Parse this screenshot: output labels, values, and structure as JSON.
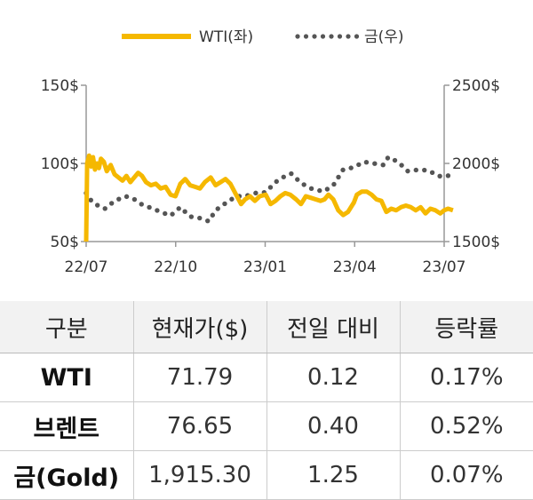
{
  "chart_data": {
    "type": "line",
    "legend_position": "top-center",
    "grid": false,
    "x_ticks": [
      "22/07",
      "22/10",
      "23/01",
      "23/04",
      "23/07"
    ],
    "x_range": [
      "2022-07",
      "2023-07"
    ],
    "y_left": {
      "ticks": [
        "150$",
        "100$",
        "50$"
      ],
      "ylim": [
        50,
        150
      ]
    },
    "y_right": {
      "ticks": [
        "2500$",
        "2000$",
        "1500$"
      ],
      "ylim": [
        1500,
        2500
      ]
    },
    "series": [
      {
        "name": "WTI(좌)",
        "axis": "left",
        "style": "solid",
        "color": "#F5B800",
        "points": [
          [
            "2022-07-01",
            50
          ],
          [
            "2022-07-02",
            100
          ],
          [
            "2022-07-04",
            105
          ],
          [
            "2022-07-06",
            98
          ],
          [
            "2022-07-08",
            104
          ],
          [
            "2022-07-10",
            96
          ],
          [
            "2022-07-12",
            100
          ],
          [
            "2022-07-14",
            97
          ],
          [
            "2022-07-16",
            103
          ],
          [
            "2022-07-19",
            101
          ],
          [
            "2022-07-22",
            95
          ],
          [
            "2022-07-26",
            99
          ],
          [
            "2022-07-30",
            93
          ],
          [
            "2022-08-03",
            91
          ],
          [
            "2022-08-07",
            89
          ],
          [
            "2022-08-11",
            92
          ],
          [
            "2022-08-15",
            88
          ],
          [
            "2022-08-19",
            91
          ],
          [
            "2022-08-23",
            94
          ],
          [
            "2022-08-27",
            92
          ],
          [
            "2022-08-31",
            88
          ],
          [
            "2022-09-05",
            86
          ],
          [
            "2022-09-10",
            87
          ],
          [
            "2022-09-15",
            84
          ],
          [
            "2022-09-20",
            85
          ],
          [
            "2022-09-25",
            80
          ],
          [
            "2022-09-30",
            79
          ],
          [
            "2022-10-05",
            87
          ],
          [
            "2022-10-10",
            90
          ],
          [
            "2022-10-15",
            86
          ],
          [
            "2022-10-20",
            85
          ],
          [
            "2022-10-25",
            84
          ],
          [
            "2022-10-30",
            88
          ],
          [
            "2022-11-05",
            91
          ],
          [
            "2022-11-10",
            86
          ],
          [
            "2022-11-15",
            88
          ],
          [
            "2022-11-20",
            90
          ],
          [
            "2022-11-25",
            87
          ],
          [
            "2022-11-30",
            81
          ],
          [
            "2022-12-06",
            74
          ],
          [
            "2022-12-10",
            77
          ],
          [
            "2022-12-15",
            79
          ],
          [
            "2022-12-20",
            76
          ],
          [
            "2022-12-25",
            79
          ],
          [
            "2022-12-31",
            80
          ],
          [
            "2023-01-05",
            74
          ],
          [
            "2023-01-10",
            76
          ],
          [
            "2023-01-15",
            79
          ],
          [
            "2023-01-20",
            81
          ],
          [
            "2023-01-25",
            80
          ],
          [
            "2023-01-31",
            77
          ],
          [
            "2023-02-05",
            74
          ],
          [
            "2023-02-10",
            79
          ],
          [
            "2023-02-15",
            78
          ],
          [
            "2023-02-20",
            77
          ],
          [
            "2023-02-25",
            76
          ],
          [
            "2023-03-01",
            77
          ],
          [
            "2023-03-05",
            80
          ],
          [
            "2023-03-10",
            77
          ],
          [
            "2023-03-15",
            70
          ],
          [
            "2023-03-20",
            67
          ],
          [
            "2023-03-25",
            69
          ],
          [
            "2023-03-31",
            75
          ],
          [
            "2023-04-03",
            80
          ],
          [
            "2023-04-08",
            82
          ],
          [
            "2023-04-13",
            82
          ],
          [
            "2023-04-18",
            80
          ],
          [
            "2023-04-23",
            77
          ],
          [
            "2023-04-28",
            76
          ],
          [
            "2023-05-03",
            69
          ],
          [
            "2023-05-08",
            71
          ],
          [
            "2023-05-13",
            70
          ],
          [
            "2023-05-18",
            72
          ],
          [
            "2023-05-23",
            73
          ],
          [
            "2023-05-28",
            72
          ],
          [
            "2023-06-02",
            70
          ],
          [
            "2023-06-07",
            72
          ],
          [
            "2023-06-12",
            68
          ],
          [
            "2023-06-17",
            71
          ],
          [
            "2023-06-22",
            70
          ],
          [
            "2023-06-27",
            68
          ],
          [
            "2023-07-01",
            70
          ],
          [
            "2023-07-05",
            71
          ],
          [
            "2023-07-10",
            70
          ]
        ]
      },
      {
        "name": "금(우)",
        "axis": "right",
        "style": "dotted",
        "color": "#555555",
        "points": [
          [
            "2022-07-01",
            1810
          ],
          [
            "2022-07-05",
            1770
          ],
          [
            "2022-07-10",
            1740
          ],
          [
            "2022-07-20",
            1710
          ],
          [
            "2022-07-30",
            1760
          ],
          [
            "2022-08-10",
            1790
          ],
          [
            "2022-08-18",
            1775
          ],
          [
            "2022-08-26",
            1740
          ],
          [
            "2022-09-05",
            1715
          ],
          [
            "2022-09-15",
            1690
          ],
          [
            "2022-09-25",
            1665
          ],
          [
            "2022-10-05",
            1720
          ],
          [
            "2022-10-15",
            1660
          ],
          [
            "2022-10-25",
            1650
          ],
          [
            "2022-11-03",
            1630
          ],
          [
            "2022-11-10",
            1700
          ],
          [
            "2022-11-20",
            1745
          ],
          [
            "2022-12-01",
            1790
          ],
          [
            "2022-12-10",
            1790
          ],
          [
            "2022-12-20",
            1810
          ],
          [
            "2022-12-31",
            1815
          ],
          [
            "2023-01-10",
            1880
          ],
          [
            "2023-01-20",
            1920
          ],
          [
            "2023-01-26",
            1935
          ],
          [
            "2023-02-05",
            1875
          ],
          [
            "2023-02-15",
            1840
          ],
          [
            "2023-02-28",
            1820
          ],
          [
            "2023-03-10",
            1860
          ],
          [
            "2023-03-20",
            1960
          ],
          [
            "2023-03-31",
            1975
          ],
          [
            "2023-04-10",
            2010
          ],
          [
            "2023-04-20",
            2000
          ],
          [
            "2023-04-30",
            1990
          ],
          [
            "2023-05-05",
            2040
          ],
          [
            "2023-05-15",
            2010
          ],
          [
            "2023-05-25",
            1950
          ],
          [
            "2023-06-05",
            1960
          ],
          [
            "2023-06-15",
            1955
          ],
          [
            "2023-06-25",
            1920
          ],
          [
            "2023-07-01",
            1915
          ],
          [
            "2023-07-07",
            1925
          ]
        ]
      }
    ]
  },
  "table": {
    "headers": [
      "구분",
      "현재가($)",
      "전일 대비",
      "등락률"
    ],
    "rows": [
      [
        "WTI",
        "71.79",
        "0.12",
        "0.17%"
      ],
      [
        "브렌트",
        "76.65",
        "0.40",
        "0.52%"
      ],
      [
        "금(Gold)",
        "1,915.30",
        "1.25",
        "0.07%"
      ]
    ]
  }
}
